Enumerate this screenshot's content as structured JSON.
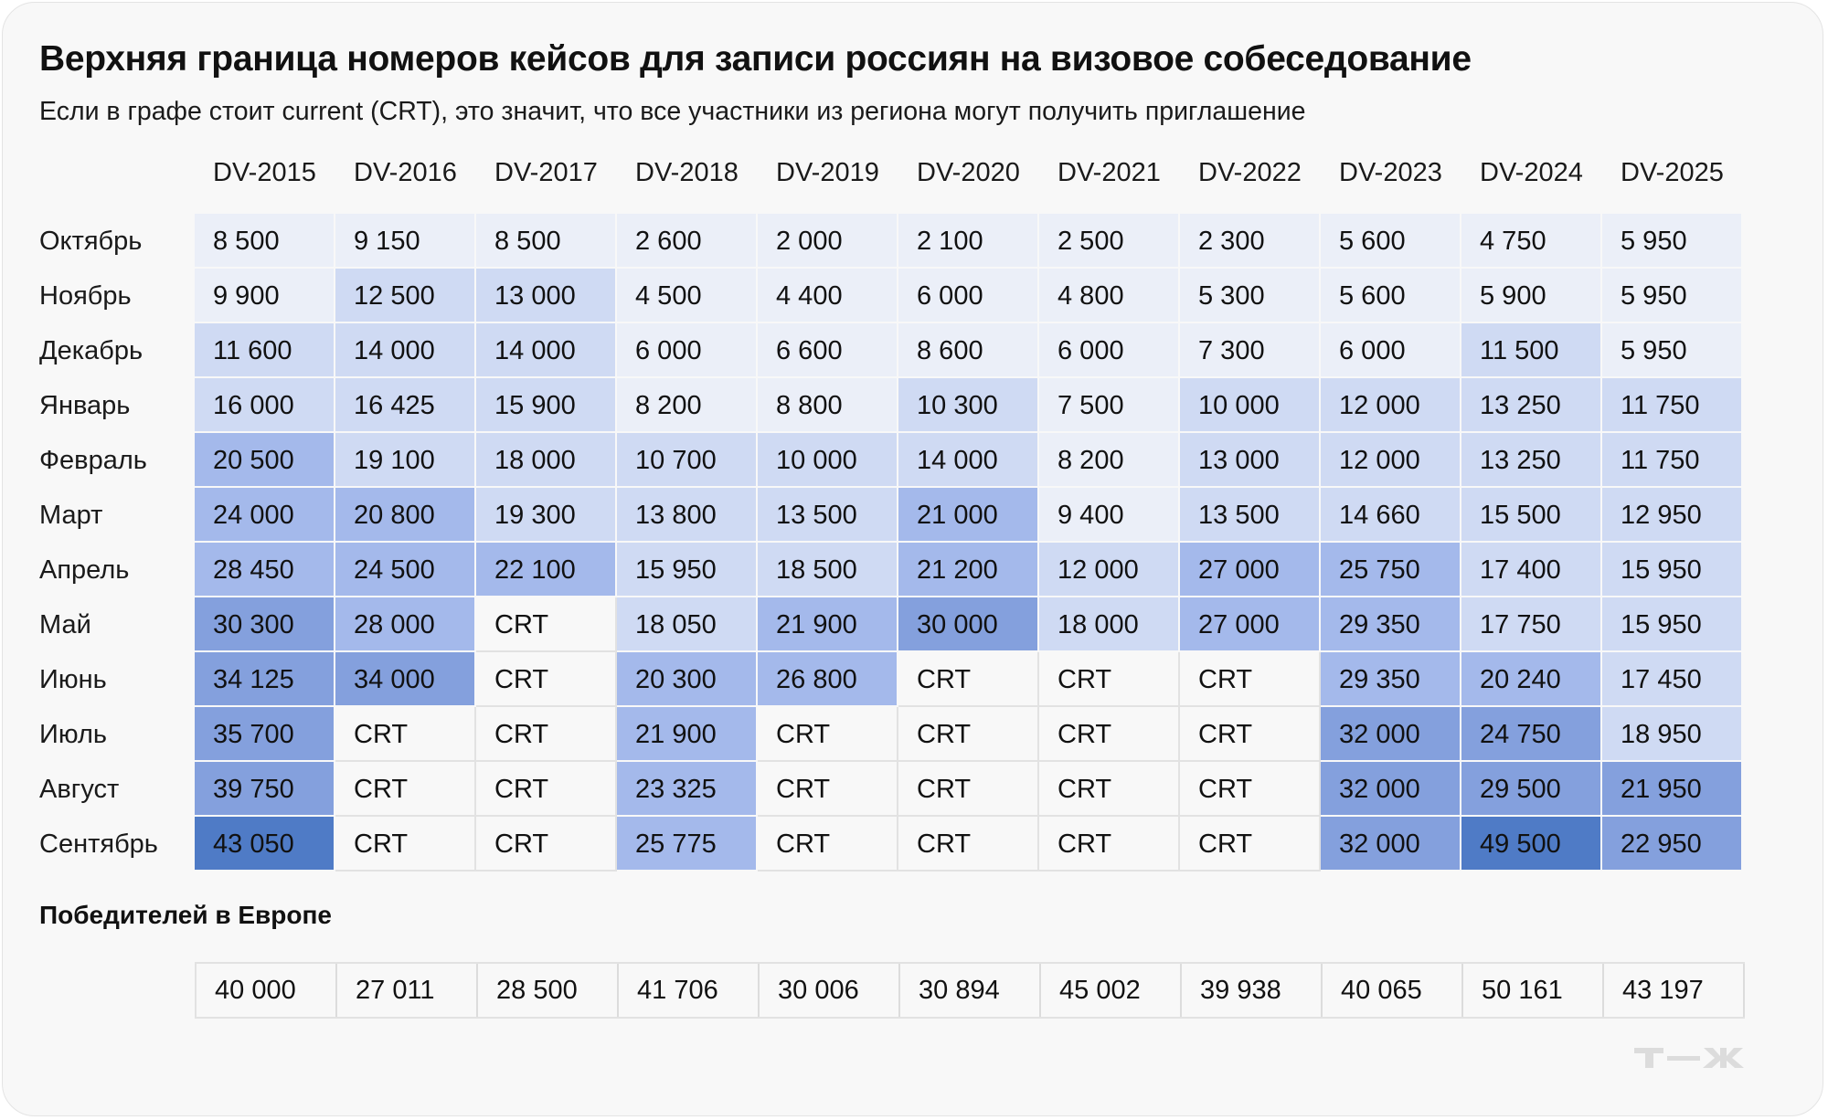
{
  "header": {
    "title": "Верхняя граница номеров кейсов для записи россиян на визовое собеседование",
    "subtitle": "Если в графе стоит current (CRT), это значит, что все участники из региона могут получить приглашение"
  },
  "columns": [
    "DV-2015",
    "DV-2016",
    "DV-2017",
    "DV-2018",
    "DV-2019",
    "DV-2020",
    "DV-2021",
    "DV-2022",
    "DV-2023",
    "DV-2024",
    "DV-2025"
  ],
  "rows": [
    {
      "label": "Октябрь",
      "cells": [
        {
          "v": "8 500",
          "s": "l0"
        },
        {
          "v": "9 150",
          "s": "l0"
        },
        {
          "v": "8 500",
          "s": "l0"
        },
        {
          "v": "2 600",
          "s": "l0"
        },
        {
          "v": "2 000",
          "s": "l0"
        },
        {
          "v": "2 100",
          "s": "l0"
        },
        {
          "v": "2 500",
          "s": "l0"
        },
        {
          "v": "2 300",
          "s": "l0"
        },
        {
          "v": "5 600",
          "s": "l0"
        },
        {
          "v": "4 750",
          "s": "l0"
        },
        {
          "v": "5 950",
          "s": "l0"
        }
      ]
    },
    {
      "label": "Ноябрь",
      "cells": [
        {
          "v": "9 900",
          "s": "l0"
        },
        {
          "v": "12 500",
          "s": "l1"
        },
        {
          "v": "13 000",
          "s": "l1"
        },
        {
          "v": "4 500",
          "s": "l0"
        },
        {
          "v": "4 400",
          "s": "l0"
        },
        {
          "v": "6 000",
          "s": "l0"
        },
        {
          "v": "4 800",
          "s": "l0"
        },
        {
          "v": "5 300",
          "s": "l0"
        },
        {
          "v": "5 600",
          "s": "l0"
        },
        {
          "v": "5 900",
          "s": "l0"
        },
        {
          "v": "5 950",
          "s": "l0"
        }
      ]
    },
    {
      "label": "Декабрь",
      "cells": [
        {
          "v": "11 600",
          "s": "l1"
        },
        {
          "v": "14 000",
          "s": "l1"
        },
        {
          "v": "14 000",
          "s": "l1"
        },
        {
          "v": "6 000",
          "s": "l0"
        },
        {
          "v": "6 600",
          "s": "l0"
        },
        {
          "v": "8 600",
          "s": "l0"
        },
        {
          "v": "6 000",
          "s": "l0"
        },
        {
          "v": "7 300",
          "s": "l0"
        },
        {
          "v": "6 000",
          "s": "l0"
        },
        {
          "v": "11 500",
          "s": "l1"
        },
        {
          "v": "5 950",
          "s": "l0"
        }
      ]
    },
    {
      "label": "Январь",
      "cells": [
        {
          "v": "16 000",
          "s": "l1"
        },
        {
          "v": "16 425",
          "s": "l1"
        },
        {
          "v": "15 900",
          "s": "l1"
        },
        {
          "v": "8 200",
          "s": "l0"
        },
        {
          "v": "8 800",
          "s": "l0"
        },
        {
          "v": "10 300",
          "s": "l1"
        },
        {
          "v": "7 500",
          "s": "l0"
        },
        {
          "v": "10 000",
          "s": "l1"
        },
        {
          "v": "12 000",
          "s": "l1"
        },
        {
          "v": "13 250",
          "s": "l1"
        },
        {
          "v": "11 750",
          "s": "l1"
        }
      ]
    },
    {
      "label": "Февраль",
      "cells": [
        {
          "v": "20 500",
          "s": "l2"
        },
        {
          "v": "19 100",
          "s": "l1"
        },
        {
          "v": "18 000",
          "s": "l1"
        },
        {
          "v": "10 700",
          "s": "l1"
        },
        {
          "v": "10 000",
          "s": "l1"
        },
        {
          "v": "14 000",
          "s": "l1"
        },
        {
          "v": "8 200",
          "s": "l0"
        },
        {
          "v": "13 000",
          "s": "l1"
        },
        {
          "v": "12 000",
          "s": "l1"
        },
        {
          "v": "13 250",
          "s": "l1"
        },
        {
          "v": "11 750",
          "s": "l1"
        }
      ]
    },
    {
      "label": "Март",
      "cells": [
        {
          "v": "24 000",
          "s": "l2"
        },
        {
          "v": "20 800",
          "s": "l2"
        },
        {
          "v": "19 300",
          "s": "l1"
        },
        {
          "v": "13 800",
          "s": "l1"
        },
        {
          "v": "13 500",
          "s": "l1"
        },
        {
          "v": "21 000",
          "s": "l2"
        },
        {
          "v": "9 400",
          "s": "l0"
        },
        {
          "v": "13 500",
          "s": "l1"
        },
        {
          "v": "14 660",
          "s": "l1"
        },
        {
          "v": "15 500",
          "s": "l1"
        },
        {
          "v": "12 950",
          "s": "l1"
        }
      ]
    },
    {
      "label": "Апрель",
      "cells": [
        {
          "v": "28 450",
          "s": "l2"
        },
        {
          "v": "24 500",
          "s": "l2"
        },
        {
          "v": "22 100",
          "s": "l2"
        },
        {
          "v": "15 950",
          "s": "l1"
        },
        {
          "v": "18 500",
          "s": "l1"
        },
        {
          "v": "21 200",
          "s": "l2"
        },
        {
          "v": "12 000",
          "s": "l1"
        },
        {
          "v": "27 000",
          "s": "l2"
        },
        {
          "v": "25 750",
          "s": "l2"
        },
        {
          "v": "17 400",
          "s": "l1"
        },
        {
          "v": "15 950",
          "s": "l1"
        }
      ]
    },
    {
      "label": "Май",
      "cells": [
        {
          "v": "30 300",
          "s": "l3"
        },
        {
          "v": "28 000",
          "s": "l2"
        },
        {
          "v": "CRT",
          "s": "crt"
        },
        {
          "v": "18 050",
          "s": "l1"
        },
        {
          "v": "21 900",
          "s": "l2"
        },
        {
          "v": "30 000",
          "s": "l3"
        },
        {
          "v": "18 000",
          "s": "l1"
        },
        {
          "v": "27 000",
          "s": "l2"
        },
        {
          "v": "29 350",
          "s": "l2"
        },
        {
          "v": "17 750",
          "s": "l1"
        },
        {
          "v": "15 950",
          "s": "l1"
        }
      ]
    },
    {
      "label": "Июнь",
      "cells": [
        {
          "v": "34 125",
          "s": "l3"
        },
        {
          "v": "34 000",
          "s": "l3"
        },
        {
          "v": "CRT",
          "s": "crt"
        },
        {
          "v": "20 300",
          "s": "l2"
        },
        {
          "v": "26 800",
          "s": "l2"
        },
        {
          "v": "CRT",
          "s": "crt"
        },
        {
          "v": "CRT",
          "s": "crt"
        },
        {
          "v": "CRT",
          "s": "crt"
        },
        {
          "v": "29 350",
          "s": "l2"
        },
        {
          "v": "20 240",
          "s": "l2"
        },
        {
          "v": "17 450",
          "s": "l1"
        }
      ]
    },
    {
      "label": "Июль",
      "cells": [
        {
          "v": "35 700",
          "s": "l3"
        },
        {
          "v": "CRT",
          "s": "crt"
        },
        {
          "v": "CRT",
          "s": "crt"
        },
        {
          "v": "21 900",
          "s": "l2"
        },
        {
          "v": "CRT",
          "s": "crt"
        },
        {
          "v": "CRT",
          "s": "crt"
        },
        {
          "v": "CRT",
          "s": "crt"
        },
        {
          "v": "CRT",
          "s": "crt"
        },
        {
          "v": "32 000",
          "s": "l3"
        },
        {
          "v": "24 750",
          "s": "l3"
        },
        {
          "v": "18 950",
          "s": "l1"
        }
      ]
    },
    {
      "label": "Август",
      "cells": [
        {
          "v": "39 750",
          "s": "l3"
        },
        {
          "v": "CRT",
          "s": "crt"
        },
        {
          "v": "CRT",
          "s": "crt"
        },
        {
          "v": "23 325",
          "s": "l2"
        },
        {
          "v": "CRT",
          "s": "crt"
        },
        {
          "v": "CRT",
          "s": "crt"
        },
        {
          "v": "CRT",
          "s": "crt"
        },
        {
          "v": "CRT",
          "s": "crt"
        },
        {
          "v": "32 000",
          "s": "l3"
        },
        {
          "v": "29 500",
          "s": "l3"
        },
        {
          "v": "21 950",
          "s": "l3"
        }
      ]
    },
    {
      "label": "Сентябрь",
      "cells": [
        {
          "v": "43 050",
          "s": "l4"
        },
        {
          "v": "CRT",
          "s": "crt"
        },
        {
          "v": "CRT",
          "s": "crt"
        },
        {
          "v": "25 775",
          "s": "l2"
        },
        {
          "v": "CRT",
          "s": "crt"
        },
        {
          "v": "CRT",
          "s": "crt"
        },
        {
          "v": "CRT",
          "s": "crt"
        },
        {
          "v": "CRT",
          "s": "crt"
        },
        {
          "v": "32 000",
          "s": "l3"
        },
        {
          "v": "49 500",
          "s": "l4"
        },
        {
          "v": "22 950",
          "s": "l3"
        }
      ]
    }
  ],
  "europe": {
    "title": "Победителей в Европе",
    "values": [
      "40 000",
      "27 011",
      "28 500",
      "41 706",
      "30 006",
      "30 894",
      "45 002",
      "39 938",
      "40 065",
      "50 161",
      "43 197"
    ]
  },
  "logo": {
    "text": "Т—Ж"
  },
  "colors": {
    "card_bg": "#f8f8f8",
    "level0": "#ebeff8",
    "level1": "#cfdaf3",
    "level2": "#a4b9eb",
    "level3": "#84a0dd",
    "level4": "#4f7bc6",
    "crt_bg": "#f8f8f8",
    "logo": "#dcdcdc"
  },
  "chart_data": {
    "type": "heatmap",
    "title": "Верхняя граница номеров кейсов для записи россиян на визовое собеседование",
    "subtitle": "Если в графе стоит current (CRT), это значит, что все участники из региона могут получить приглашение",
    "x": [
      "DV-2015",
      "DV-2016",
      "DV-2017",
      "DV-2018",
      "DV-2019",
      "DV-2020",
      "DV-2021",
      "DV-2022",
      "DV-2023",
      "DV-2024",
      "DV-2025"
    ],
    "y": [
      "Октябрь",
      "Ноябрь",
      "Декабрь",
      "Январь",
      "Февраль",
      "Март",
      "Апрель",
      "Май",
      "Июнь",
      "Июль",
      "Август",
      "Сентябрь"
    ],
    "values": [
      [
        8500,
        9150,
        8500,
        2600,
        2000,
        2100,
        2500,
        2300,
        5600,
        4750,
        5950
      ],
      [
        9900,
        12500,
        13000,
        4500,
        4400,
        6000,
        4800,
        5300,
        5600,
        5900,
        5950
      ],
      [
        11600,
        14000,
        14000,
        6000,
        6600,
        8600,
        6000,
        7300,
        6000,
        11500,
        5950
      ],
      [
        16000,
        16425,
        15900,
        8200,
        8800,
        10300,
        7500,
        10000,
        12000,
        13250,
        11750
      ],
      [
        20500,
        19100,
        18000,
        10700,
        10000,
        14000,
        8200,
        13000,
        12000,
        13250,
        11750
      ],
      [
        24000,
        20800,
        19300,
        13800,
        13500,
        21000,
        9400,
        13500,
        14660,
        15500,
        12950
      ],
      [
        28450,
        24500,
        22100,
        15950,
        18500,
        21200,
        12000,
        27000,
        25750,
        17400,
        15950
      ],
      [
        30300,
        28000,
        "CRT",
        18050,
        21900,
        30000,
        18000,
        27000,
        29350,
        17750,
        15950
      ],
      [
        34125,
        34000,
        "CRT",
        20300,
        26800,
        "CRT",
        "CRT",
        "CRT",
        29350,
        20240,
        17450
      ],
      [
        35700,
        "CRT",
        "CRT",
        21900,
        "CRT",
        "CRT",
        "CRT",
        "CRT",
        32000,
        24750,
        18950
      ],
      [
        39750,
        "CRT",
        "CRT",
        23325,
        "CRT",
        "CRT",
        "CRT",
        "CRT",
        32000,
        29500,
        21950
      ],
      [
        43050,
        "CRT",
        "CRT",
        25775,
        "CRT",
        "CRT",
        "CRT",
        "CRT",
        32000,
        49500,
        22950
      ]
    ],
    "secondary_table": {
      "title": "Победителей в Европе",
      "x": [
        "DV-2015",
        "DV-2016",
        "DV-2017",
        "DV-2018",
        "DV-2019",
        "DV-2020",
        "DV-2021",
        "DV-2022",
        "DV-2023",
        "DV-2024",
        "DV-2025"
      ],
      "values": [
        40000,
        27011,
        28500,
        41706,
        30006,
        30894,
        45002,
        39938,
        40065,
        50161,
        43197
      ]
    },
    "xlabel": "",
    "ylabel": "",
    "legend": "none"
  }
}
